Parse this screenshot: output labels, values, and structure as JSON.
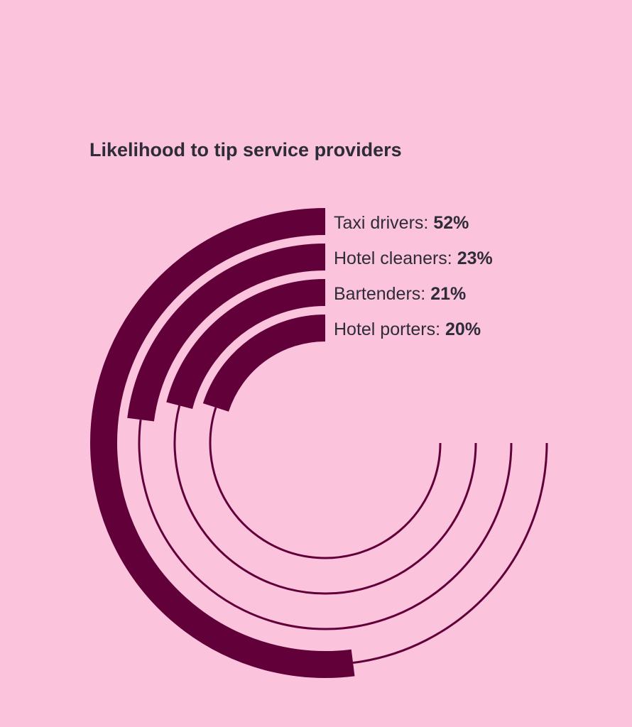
{
  "chart_data": {
    "type": "radial-bar",
    "title": "Likelihood to tip service providers",
    "unit": "%",
    "max": 100,
    "categories": [
      "Taxi drivers",
      "Hotel cleaners",
      "Bartenders",
      "Hotel porters"
    ],
    "values": [
      52,
      23,
      21,
      20
    ],
    "value_labels": [
      "52%",
      "23%",
      "21%",
      "20%"
    ],
    "grid": false,
    "legend": "none"
  },
  "colors": {
    "background": "#fbc3dc",
    "bar": "#62003a",
    "track": "#62003a",
    "text": "#2d2c38"
  }
}
